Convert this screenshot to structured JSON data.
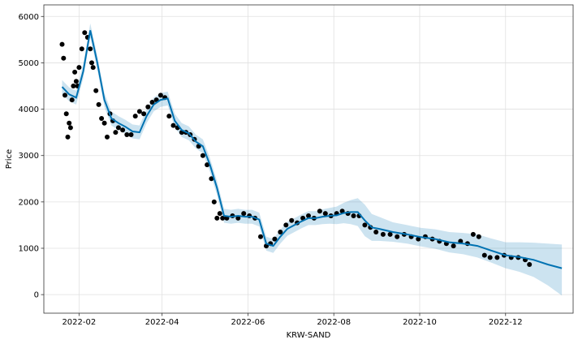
{
  "chart_data": {
    "type": "line",
    "title": "",
    "xlabel": "KRW-SAND",
    "ylabel": "Price",
    "x_range": [
      "2022-01-07",
      "2023-01-18"
    ],
    "ylim": [
      -400,
      6250
    ],
    "x_ticks": [
      "2022-02",
      "2022-04",
      "2022-06",
      "2022-08",
      "2022-10",
      "2022-12"
    ],
    "y_ticks": [
      0,
      1000,
      2000,
      3000,
      4000,
      5000,
      6000
    ],
    "grid": true,
    "legend": "none",
    "colors": {
      "observed": "#000000",
      "forecast_line": "#0072b2",
      "uncertainty_band": "#0072b2",
      "grid": "#e0e0e0",
      "axes": "#333333"
    },
    "series": [
      {
        "style": "points",
        "x": [
          "2022-01-20",
          "2022-01-21",
          "2022-01-22",
          "2022-01-23",
          "2022-01-24",
          "2022-01-25",
          "2022-01-26",
          "2022-01-27",
          "2022-01-28",
          "2022-01-29",
          "2022-01-30",
          "2022-01-31",
          "2022-02-01",
          "2022-02-03",
          "2022-02-05",
          "2022-02-07",
          "2022-02-09",
          "2022-02-10",
          "2022-02-11",
          "2022-02-13",
          "2022-02-15",
          "2022-02-17",
          "2022-02-19",
          "2022-02-21",
          "2022-02-23",
          "2022-02-25",
          "2022-02-27",
          "2022-03-01",
          "2022-03-04",
          "2022-03-07",
          "2022-03-10",
          "2022-03-13",
          "2022-03-16",
          "2022-03-19",
          "2022-03-22",
          "2022-03-25",
          "2022-03-28",
          "2022-03-31",
          "2022-04-03",
          "2022-04-06",
          "2022-04-09",
          "2022-04-12",
          "2022-04-15",
          "2022-04-18",
          "2022-04-21",
          "2022-04-24",
          "2022-04-27",
          "2022-04-30",
          "2022-05-03",
          "2022-05-06",
          "2022-05-08",
          "2022-05-10",
          "2022-05-12",
          "2022-05-14",
          "2022-05-17",
          "2022-05-21",
          "2022-05-25",
          "2022-05-29",
          "2022-06-02",
          "2022-06-06",
          "2022-06-10",
          "2022-06-14",
          "2022-06-17",
          "2022-06-20",
          "2022-06-24",
          "2022-06-28",
          "2022-07-02",
          "2022-07-06",
          "2022-07-10",
          "2022-07-14",
          "2022-07-18",
          "2022-07-22",
          "2022-07-26",
          "2022-07-30",
          "2022-08-03",
          "2022-08-07",
          "2022-08-11",
          "2022-08-15",
          "2022-08-19",
          "2022-08-23",
          "2022-08-27",
          "2022-08-31",
          "2022-09-05",
          "2022-09-10",
          "2022-09-15",
          "2022-09-20",
          "2022-09-25",
          "2022-09-30",
          "2022-10-05",
          "2022-10-10",
          "2022-10-15",
          "2022-10-20",
          "2022-10-25",
          "2022-10-30",
          "2022-11-04",
          "2022-11-08",
          "2022-11-12",
          "2022-11-16",
          "2022-11-20",
          "2022-11-25",
          "2022-11-30",
          "2022-12-05",
          "2022-12-10",
          "2022-12-15",
          "2022-12-18"
        ],
        "values": [
          5400,
          5100,
          4300,
          3900,
          3400,
          3700,
          3600,
          4200,
          4500,
          4800,
          4600,
          4500,
          4900,
          5300,
          5650,
          5550,
          5300,
          5000,
          4900,
          4400,
          4100,
          3800,
          3700,
          3400,
          3900,
          3750,
          3500,
          3600,
          3550,
          3450,
          3450,
          3850,
          3950,
          3900,
          4050,
          4150,
          4200,
          4300,
          4250,
          3850,
          3650,
          3600,
          3500,
          3500,
          3450,
          3350,
          3200,
          3000,
          2800,
          2500,
          2000,
          1650,
          1750,
          1650,
          1650,
          1700,
          1650,
          1750,
          1700,
          1650,
          1250,
          1050,
          1100,
          1200,
          1350,
          1500,
          1600,
          1550,
          1650,
          1700,
          1650,
          1800,
          1750,
          1700,
          1750,
          1800,
          1750,
          1700,
          1700,
          1500,
          1450,
          1350,
          1300,
          1300,
          1250,
          1300,
          1250,
          1200,
          1250,
          1200,
          1150,
          1100,
          1050,
          1150,
          1100,
          1300,
          1250,
          850,
          800,
          800,
          850,
          800,
          800,
          750,
          650
        ]
      },
      {
        "style": "line",
        "x": [
          "2022-01-20",
          "2022-01-25",
          "2022-01-30",
          "2022-02-04",
          "2022-02-09",
          "2022-02-14",
          "2022-02-19",
          "2022-02-24",
          "2022-03-01",
          "2022-03-06",
          "2022-03-11",
          "2022-03-16",
          "2022-03-21",
          "2022-03-26",
          "2022-03-31",
          "2022-04-05",
          "2022-04-10",
          "2022-04-15",
          "2022-04-20",
          "2022-04-25",
          "2022-04-30",
          "2022-05-05",
          "2022-05-10",
          "2022-05-15",
          "2022-05-20",
          "2022-05-25",
          "2022-05-30",
          "2022-06-04",
          "2022-06-09",
          "2022-06-14",
          "2022-06-19",
          "2022-06-24",
          "2022-06-29",
          "2022-07-04",
          "2022-07-09",
          "2022-07-14",
          "2022-07-19",
          "2022-07-24",
          "2022-07-29",
          "2022-08-03",
          "2022-08-08",
          "2022-08-13",
          "2022-08-18",
          "2022-08-23",
          "2022-08-28",
          "2022-09-02",
          "2022-09-12",
          "2022-09-22",
          "2022-10-02",
          "2022-10-12",
          "2022-10-22",
          "2022-11-01",
          "2022-11-11",
          "2022-11-21",
          "2022-12-01",
          "2022-12-11",
          "2022-12-21",
          "2022-12-31",
          "2023-01-10"
        ],
        "values": [
          4480,
          4320,
          4250,
          4820,
          5700,
          5000,
          4200,
          3800,
          3700,
          3620,
          3520,
          3500,
          3850,
          4100,
          4200,
          4230,
          3750,
          3550,
          3480,
          3300,
          3200,
          2800,
          2300,
          1700,
          1680,
          1700,
          1680,
          1680,
          1620,
          1100,
          1050,
          1250,
          1420,
          1500,
          1580,
          1650,
          1650,
          1680,
          1700,
          1710,
          1760,
          1780,
          1780,
          1600,
          1450,
          1420,
          1350,
          1300,
          1240,
          1200,
          1130,
          1100,
          1050,
          950,
          850,
          810,
          750,
          650,
          570
        ]
      }
    ],
    "uncertainty": {
      "x": [
        "2022-01-20",
        "2022-01-25",
        "2022-01-30",
        "2022-02-04",
        "2022-02-09",
        "2022-02-14",
        "2022-02-19",
        "2022-02-24",
        "2022-03-01",
        "2022-03-06",
        "2022-03-11",
        "2022-03-16",
        "2022-03-21",
        "2022-03-26",
        "2022-03-31",
        "2022-04-05",
        "2022-04-10",
        "2022-04-15",
        "2022-04-20",
        "2022-04-25",
        "2022-04-30",
        "2022-05-05",
        "2022-05-10",
        "2022-05-15",
        "2022-05-20",
        "2022-05-25",
        "2022-05-30",
        "2022-06-04",
        "2022-06-09",
        "2022-06-14",
        "2022-06-19",
        "2022-06-24",
        "2022-06-29",
        "2022-07-04",
        "2022-07-09",
        "2022-07-14",
        "2022-07-19",
        "2022-07-24",
        "2022-07-29",
        "2022-08-03",
        "2022-08-08",
        "2022-08-13",
        "2022-08-18",
        "2022-08-23",
        "2022-08-28",
        "2022-09-02",
        "2022-09-12",
        "2022-09-22",
        "2022-10-02",
        "2022-10-12",
        "2022-10-22",
        "2022-11-01",
        "2022-11-11",
        "2022-11-21",
        "2022-12-01",
        "2022-12-11",
        "2022-12-21",
        "2022-12-31",
        "2023-01-10"
      ],
      "lower": [
        4330,
        4170,
        4100,
        4670,
        5550,
        4850,
        4050,
        3650,
        3550,
        3470,
        3370,
        3350,
        3700,
        3950,
        4050,
        4080,
        3600,
        3400,
        3330,
        3150,
        3050,
        2650,
        2150,
        1550,
        1530,
        1550,
        1530,
        1530,
        1470,
        950,
        900,
        1100,
        1270,
        1350,
        1430,
        1500,
        1500,
        1520,
        1530,
        1520,
        1540,
        1520,
        1480,
        1260,
        1160,
        1160,
        1140,
        1100,
        1040,
        990,
        910,
        870,
        800,
        690,
        570,
        490,
        380,
        200,
        -20
      ],
      "upper": [
        4630,
        4470,
        4400,
        4970,
        5850,
        5150,
        4350,
        3950,
        3850,
        3770,
        3670,
        3650,
        4000,
        4250,
        4350,
        4380,
        3900,
        3700,
        3630,
        3450,
        3350,
        2950,
        2450,
        1850,
        1830,
        1850,
        1830,
        1830,
        1770,
        1250,
        1200,
        1400,
        1570,
        1650,
        1730,
        1800,
        1800,
        1840,
        1870,
        1900,
        1980,
        2040,
        2080,
        1940,
        1740,
        1680,
        1560,
        1500,
        1440,
        1410,
        1350,
        1330,
        1300,
        1210,
        1130,
        1130,
        1120,
        1100,
        1080
      ]
    }
  }
}
